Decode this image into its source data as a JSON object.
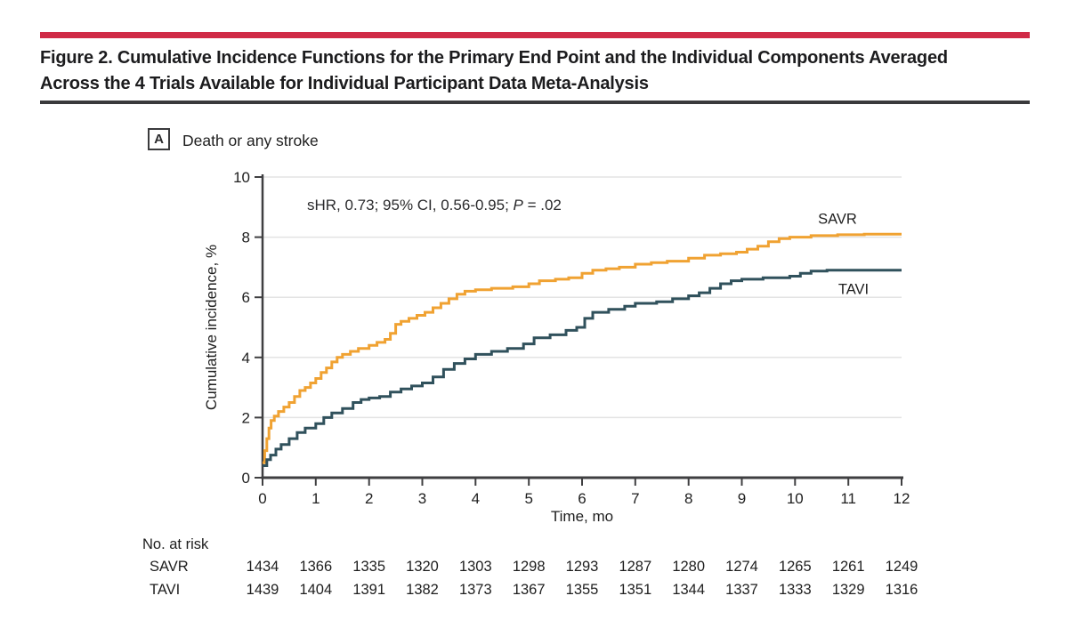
{
  "page": {
    "figure_title": "Figure 2. Cumulative Incidence Functions for the Primary End Point and the Individual Components Averaged Across the 4 Trials Available for Individual Participant Data Meta-Analysis"
  },
  "colors": {
    "rule_red": "#D02B47",
    "dark_rule": "#3A3A3C",
    "axis": "#3F3F41",
    "gridline": "#E3E3E3",
    "text": "#1E1E1E"
  },
  "panel": {
    "label": "A",
    "title": "Death or any stroke",
    "annotation_pre": "sHR, 0.73; 95% CI, 0.56-0.95; ",
    "annotation_p": "P",
    "annotation_post": " = .02"
  },
  "chart_data": {
    "type": "line",
    "subtype": "step-cumulative-incidence",
    "title": "Death or any stroke",
    "xlabel": "Time, mo",
    "ylabel": "Cumulative incidence, %",
    "xlim": [
      0,
      12
    ],
    "ylim": [
      0,
      10
    ],
    "x_ticks": [
      0,
      1,
      2,
      3,
      4,
      5,
      6,
      7,
      8,
      9,
      10,
      11,
      12
    ],
    "y_ticks": [
      0,
      2,
      4,
      6,
      8,
      10
    ],
    "grid": "horizontal",
    "legend_position": "inline-right",
    "annotation": "sHR, 0.73; 95% CI, 0.56-0.95; P = .02",
    "series": [
      {
        "name": "SAVR",
        "color": "#F0A232",
        "final_value": 8.1,
        "points": [
          [
            0,
            0.5
          ],
          [
            0.04,
            0.9
          ],
          [
            0.08,
            1.3
          ],
          [
            0.12,
            1.65
          ],
          [
            0.16,
            1.9
          ],
          [
            0.22,
            2.05
          ],
          [
            0.3,
            2.2
          ],
          [
            0.4,
            2.35
          ],
          [
            0.5,
            2.5
          ],
          [
            0.6,
            2.7
          ],
          [
            0.7,
            2.9
          ],
          [
            0.8,
            3.0
          ],
          [
            0.9,
            3.15
          ],
          [
            1.0,
            3.3
          ],
          [
            1.1,
            3.5
          ],
          [
            1.2,
            3.65
          ],
          [
            1.3,
            3.85
          ],
          [
            1.4,
            4.0
          ],
          [
            1.5,
            4.1
          ],
          [
            1.65,
            4.2
          ],
          [
            1.8,
            4.3
          ],
          [
            2.0,
            4.4
          ],
          [
            2.15,
            4.5
          ],
          [
            2.3,
            4.6
          ],
          [
            2.4,
            4.8
          ],
          [
            2.5,
            5.1
          ],
          [
            2.6,
            5.2
          ],
          [
            2.75,
            5.3
          ],
          [
            2.9,
            5.4
          ],
          [
            3.05,
            5.5
          ],
          [
            3.2,
            5.65
          ],
          [
            3.35,
            5.8
          ],
          [
            3.5,
            5.95
          ],
          [
            3.65,
            6.1
          ],
          [
            3.8,
            6.2
          ],
          [
            4.0,
            6.25
          ],
          [
            4.3,
            6.3
          ],
          [
            4.7,
            6.35
          ],
          [
            5.0,
            6.45
          ],
          [
            5.2,
            6.55
          ],
          [
            5.5,
            6.6
          ],
          [
            5.75,
            6.65
          ],
          [
            6.0,
            6.8
          ],
          [
            6.2,
            6.9
          ],
          [
            6.45,
            6.95
          ],
          [
            6.7,
            7.0
          ],
          [
            7.0,
            7.1
          ],
          [
            7.3,
            7.15
          ],
          [
            7.6,
            7.2
          ],
          [
            8.0,
            7.3
          ],
          [
            8.3,
            7.4
          ],
          [
            8.6,
            7.45
          ],
          [
            8.9,
            7.5
          ],
          [
            9.1,
            7.6
          ],
          [
            9.3,
            7.7
          ],
          [
            9.5,
            7.85
          ],
          [
            9.7,
            7.95
          ],
          [
            9.9,
            8.0
          ],
          [
            10.3,
            8.05
          ],
          [
            10.8,
            8.08
          ],
          [
            11.3,
            8.1
          ],
          [
            12,
            8.1
          ]
        ]
      },
      {
        "name": "TAVI",
        "color": "#30515C",
        "final_value": 6.9,
        "points": [
          [
            0,
            0.4
          ],
          [
            0.08,
            0.6
          ],
          [
            0.15,
            0.75
          ],
          [
            0.25,
            0.95
          ],
          [
            0.35,
            1.1
          ],
          [
            0.5,
            1.3
          ],
          [
            0.65,
            1.5
          ],
          [
            0.8,
            1.65
          ],
          [
            1.0,
            1.8
          ],
          [
            1.15,
            2.0
          ],
          [
            1.3,
            2.15
          ],
          [
            1.5,
            2.3
          ],
          [
            1.7,
            2.5
          ],
          [
            1.85,
            2.6
          ],
          [
            2.0,
            2.65
          ],
          [
            2.2,
            2.7
          ],
          [
            2.4,
            2.85
          ],
          [
            2.6,
            2.95
          ],
          [
            2.8,
            3.05
          ],
          [
            3.0,
            3.15
          ],
          [
            3.2,
            3.35
          ],
          [
            3.4,
            3.6
          ],
          [
            3.6,
            3.8
          ],
          [
            3.8,
            3.95
          ],
          [
            4.0,
            4.1
          ],
          [
            4.3,
            4.2
          ],
          [
            4.6,
            4.3
          ],
          [
            4.9,
            4.45
          ],
          [
            5.1,
            4.65
          ],
          [
            5.4,
            4.75
          ],
          [
            5.7,
            4.9
          ],
          [
            5.9,
            5.0
          ],
          [
            6.05,
            5.3
          ],
          [
            6.2,
            5.5
          ],
          [
            6.5,
            5.6
          ],
          [
            6.8,
            5.7
          ],
          [
            7.0,
            5.8
          ],
          [
            7.4,
            5.85
          ],
          [
            7.7,
            5.95
          ],
          [
            8.0,
            6.05
          ],
          [
            8.2,
            6.15
          ],
          [
            8.4,
            6.3
          ],
          [
            8.6,
            6.45
          ],
          [
            8.8,
            6.55
          ],
          [
            9.0,
            6.6
          ],
          [
            9.4,
            6.65
          ],
          [
            9.9,
            6.7
          ],
          [
            10.1,
            6.8
          ],
          [
            10.3,
            6.87
          ],
          [
            10.6,
            6.9
          ],
          [
            12,
            6.9
          ]
        ]
      }
    ]
  },
  "risk_table": {
    "title": "No. at risk",
    "rows": [
      {
        "label": "SAVR",
        "values": [
          "1434",
          "1366",
          "1335",
          "1320",
          "1303",
          "1298",
          "1293",
          "1287",
          "1280",
          "1274",
          "1265",
          "1261",
          "1249"
        ]
      },
      {
        "label": "TAVI",
        "values": [
          "1439",
          "1404",
          "1391",
          "1382",
          "1373",
          "1367",
          "1355",
          "1351",
          "1344",
          "1337",
          "1333",
          "1329",
          "1316"
        ]
      }
    ]
  }
}
